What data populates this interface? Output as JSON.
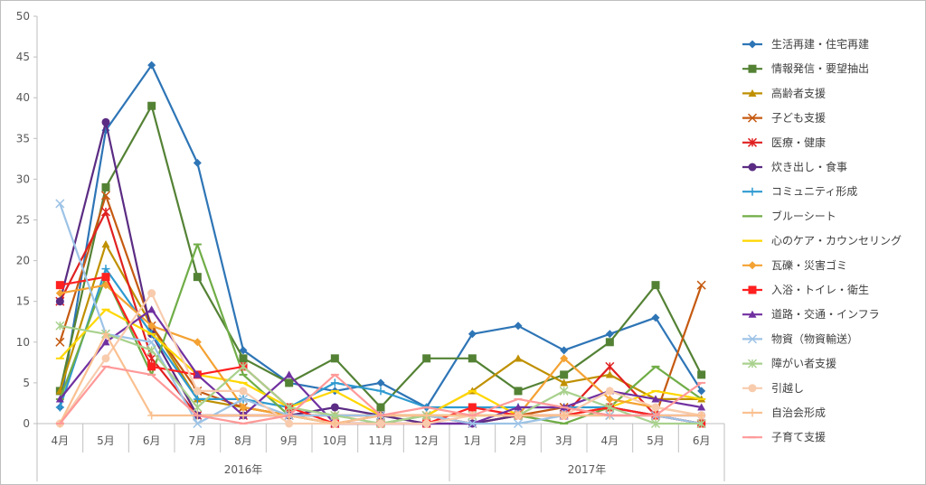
{
  "chart_data": {
    "type": "line",
    "categories": [
      "4月",
      "5月",
      "6月",
      "7月",
      "8月",
      "9月",
      "10月",
      "11月",
      "12月",
      "1月",
      "2月",
      "3月",
      "4月",
      "5月",
      "6月"
    ],
    "year_groups": [
      {
        "label": "2016年",
        "start": 0,
        "end": 8
      },
      {
        "label": "2017年",
        "start": 9,
        "end": 14
      }
    ],
    "ylim": [
      0,
      50
    ],
    "yticks": [
      0,
      5,
      10,
      15,
      20,
      25,
      30,
      35,
      40,
      45,
      50
    ],
    "grid": false,
    "legend_position": "right",
    "series": [
      {
        "name": "生活再建・住宅再建",
        "color": "#2e75b6",
        "marker": "diamond",
        "values": [
          2,
          36,
          44,
          32,
          9,
          5,
          4,
          5,
          2,
          11,
          12,
          9,
          11,
          13,
          4
        ]
      },
      {
        "name": "情報発信・要望抽出",
        "color": "#548235",
        "marker": "square",
        "values": [
          4,
          29,
          39,
          18,
          8,
          5,
          8,
          2,
          8,
          8,
          4,
          6,
          10,
          17,
          6
        ]
      },
      {
        "name": "高齢者支援",
        "color": "#bf9000",
        "marker": "triangle",
        "values": [
          4,
          22,
          12,
          3,
          2,
          1,
          1,
          1,
          1,
          4,
          8,
          5,
          6,
          3,
          3
        ]
      },
      {
        "name": "子ども支援",
        "color": "#c55a11",
        "marker": "x",
        "values": [
          10,
          28,
          12,
          4,
          2,
          1,
          0,
          1,
          1,
          0,
          1,
          2,
          1,
          1,
          17
        ]
      },
      {
        "name": "医療・健康",
        "color": "#e02020",
        "marker": "star",
        "values": [
          15,
          26,
          8,
          1,
          1,
          1,
          1,
          1,
          1,
          0,
          1,
          1,
          7,
          1,
          0
        ]
      },
      {
        "name": "炊き出し・食事",
        "color": "#5b2c83",
        "marker": "circle",
        "values": [
          15,
          37,
          11,
          1,
          1,
          1,
          2,
          1,
          0,
          0,
          1,
          1,
          2,
          1,
          1
        ]
      },
      {
        "name": "コミュニティ形成",
        "color": "#2e9ad0",
        "marker": "plus",
        "values": [
          2,
          19,
          11,
          3,
          3,
          2,
          5,
          4,
          2,
          2,
          2,
          2,
          2,
          1,
          0
        ]
      },
      {
        "name": "ブルーシート",
        "color": "#70ad47",
        "marker": "dash",
        "values": [
          3,
          18,
          6,
          22,
          6,
          1,
          0,
          0,
          1,
          1,
          1,
          0,
          2,
          7,
          3
        ]
      },
      {
        "name": "心のケア・カウンセリング",
        "color": "#ffd700",
        "marker": "dash",
        "values": [
          8,
          14,
          11,
          6,
          5,
          2,
          4,
          1,
          1,
          4,
          1,
          1,
          2,
          4,
          3
        ]
      },
      {
        "name": "瓦礫・災害ゴミ",
        "color": "#f4a233",
        "marker": "diamond",
        "values": [
          16,
          17,
          12,
          10,
          2,
          1,
          1,
          1,
          1,
          1,
          1,
          8,
          3,
          2,
          1
        ]
      },
      {
        "name": "入浴・トイレ・衛生",
        "color": "#ff2020",
        "marker": "square",
        "values": [
          17,
          18,
          7,
          6,
          7,
          2,
          0,
          0,
          0,
          2,
          1,
          1,
          2,
          1,
          0
        ]
      },
      {
        "name": "道路・交通・インフラ",
        "color": "#7030a0",
        "marker": "triangle",
        "values": [
          3,
          10,
          14,
          6,
          1,
          6,
          0,
          0,
          0,
          0,
          2,
          2,
          4,
          3,
          2
        ]
      },
      {
        "name": "物資（物資輸送）",
        "color": "#9dc3e6",
        "marker": "x",
        "values": [
          27,
          11,
          10,
          0,
          3,
          1,
          1,
          1,
          1,
          0,
          0,
          1,
          1,
          1,
          0
        ]
      },
      {
        "name": "障がい者支援",
        "color": "#a9d18e",
        "marker": "star",
        "values": [
          12,
          11,
          9,
          2,
          7,
          2,
          1,
          0,
          1,
          1,
          1,
          4,
          2,
          0,
          0
        ]
      },
      {
        "name": "引越し",
        "color": "#f8cbad",
        "marker": "circle",
        "values": [
          0,
          8,
          16,
          4,
          4,
          0,
          0,
          0,
          0,
          1,
          1,
          1,
          4,
          2,
          1
        ]
      },
      {
        "name": "自治会形成",
        "color": "#fac090",
        "marker": "plus",
        "values": [
          0,
          11,
          1,
          1,
          1,
          1,
          0,
          1,
          1,
          1,
          1,
          1,
          1,
          1,
          1
        ]
      },
      {
        "name": "子育て支援",
        "color": "#ff9999",
        "marker": "dash",
        "values": [
          0,
          7,
          6,
          1,
          0,
          1,
          6,
          1,
          2,
          1,
          3,
          2,
          1,
          1,
          5
        ]
      }
    ]
  }
}
